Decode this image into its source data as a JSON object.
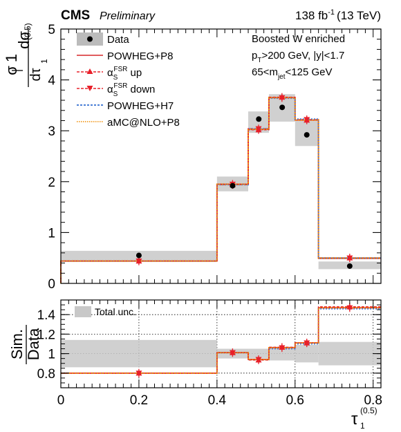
{
  "header": {
    "experiment": "CMS",
    "status": "Preliminary",
    "lumi_value": "138 fb",
    "lumi_exp": "-1",
    "energy": "(13 TeV)"
  },
  "selection": {
    "line1": "Boosted W enriched",
    "line2_pre": "p",
    "line2_sub": "T",
    "line2_post": ">200 GeV, |y|<1.7",
    "line3_pre": "65<m",
    "line3_sub": "jet",
    "line3_post": "<125 GeV"
  },
  "legend": {
    "data": "Data",
    "powheg_p8": "POWHEG+P8",
    "alpha_sym": "α",
    "alpha_sub": "S",
    "alpha_sup": "FSR",
    "up": " up",
    "down": " down",
    "powheg_h7": "POWHEG+H7",
    "amcnlo": "aMC@NLO+P8",
    "total_unc": "Total unc."
  },
  "axes": {
    "main_ylabel_num": "1",
    "main_ylabel_den": "σ",
    "main_ylabel_dnum": "dσ",
    "main_ylabel_dden": "dτ",
    "main_ylabel_dden_sub": "1",
    "main_ylabel_dden_sup": "(0.5)",
    "ratio_ylabel_num": "Sim.",
    "ratio_ylabel_den": "Data",
    "xlabel": "τ",
    "xlabel_sub": "1",
    "xlabel_sup": "(0.5)"
  },
  "chart_data": [
    {
      "type": "line",
      "panel": "main",
      "bin_edges": [
        0.0,
        0.4,
        0.48,
        0.533,
        0.6,
        0.66,
        0.9
      ],
      "xlim": [
        0,
        0.82
      ],
      "ylim": [
        0,
        5
      ],
      "xticks": [
        0,
        0.2,
        0.4,
        0.6,
        0.8
      ],
      "yticks": [
        0,
        1,
        2,
        3,
        4,
        5
      ],
      "data": {
        "x": [
          0.2,
          0.44,
          0.507,
          0.567,
          0.63,
          0.74
        ],
        "y": [
          0.55,
          1.92,
          3.23,
          3.46,
          2.92,
          0.34
        ],
        "unc_low": [
          0.42,
          1.81,
          2.96,
          3.18,
          2.7,
          0.28
        ],
        "unc_high": [
          0.64,
          2.1,
          3.38,
          3.72,
          3.22,
          0.43
        ]
      },
      "series": [
        {
          "name": "POWHEG+P8",
          "style": "solid",
          "color": "#d62728",
          "values": [
            0.44,
            1.95,
            3.03,
            3.65,
            3.21,
            0.49
          ]
        },
        {
          "name": "αS FSR up",
          "style": "dashed",
          "marker": "triangle-up",
          "color": "#e8202a",
          "values": [
            0.44,
            1.94,
            3.02,
            3.66,
            3.21,
            0.5
          ]
        },
        {
          "name": "αS FSR down",
          "style": "dashed",
          "marker": "triangle-down",
          "color": "#e8202a",
          "values": [
            0.44,
            1.95,
            3.04,
            3.65,
            3.22,
            0.5
          ]
        },
        {
          "name": "POWHEG+H7",
          "style": "dotted",
          "color": "#4a7fd6",
          "values": [
            0.44,
            1.94,
            3.04,
            3.64,
            3.23,
            0.5
          ]
        },
        {
          "name": "aMC@NLO+P8",
          "style": "dotted",
          "color": "#f08c00",
          "values": [
            0.44,
            1.95,
            3.03,
            3.65,
            3.21,
            0.5
          ]
        }
      ]
    },
    {
      "type": "line",
      "panel": "ratio",
      "bin_edges": [
        0.0,
        0.4,
        0.48,
        0.533,
        0.6,
        0.66,
        0.9
      ],
      "xlim": [
        0,
        0.82
      ],
      "ylim": [
        0.65,
        1.55
      ],
      "xticks": [
        0,
        0.2,
        0.4,
        0.6,
        0.8
      ],
      "yticks": [
        0.8,
        1,
        1.2,
        1.4
      ],
      "gridlines_y": [
        0.8,
        1.0,
        1.2,
        1.4
      ],
      "gridlines_x": [
        0.2,
        0.4,
        0.6,
        0.8
      ],
      "total_unc": {
        "low": [
          0.86,
          0.95,
          0.95,
          0.93,
          0.91,
          0.88
        ],
        "high": [
          1.14,
          1.05,
          1.05,
          1.07,
          1.09,
          1.12
        ]
      },
      "series": [
        {
          "name": "POWHEG+P8",
          "values": [
            0.8,
            1.01,
            0.94,
            1.06,
            1.11,
            1.47
          ]
        },
        {
          "name": "αS FSR up",
          "values": [
            0.8,
            1.01,
            0.935,
            1.065,
            1.11,
            1.48
          ]
        },
        {
          "name": "αS FSR down",
          "values": [
            0.8,
            1.01,
            0.94,
            1.06,
            1.11,
            1.47
          ]
        },
        {
          "name": "POWHEG+H7",
          "values": [
            0.8,
            1.01,
            0.94,
            1.05,
            1.1,
            1.46
          ]
        },
        {
          "name": "aMC@NLO+P8",
          "values": [
            0.8,
            1.01,
            0.94,
            1.06,
            1.11,
            1.47
          ]
        }
      ]
    }
  ]
}
